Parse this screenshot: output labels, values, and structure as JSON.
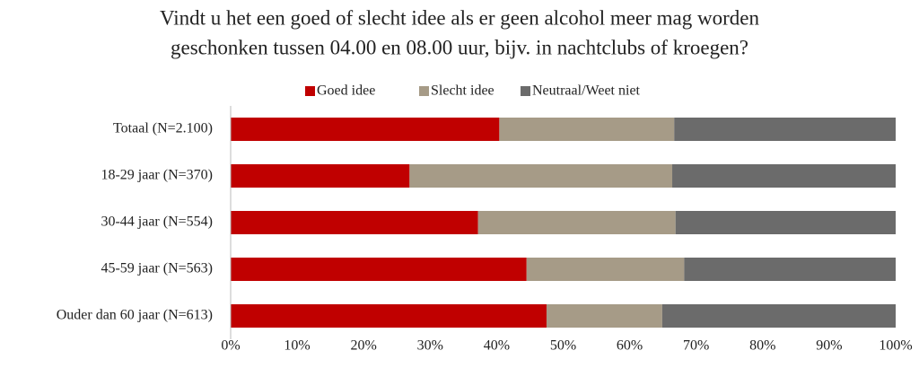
{
  "chart_data": {
    "type": "stacked-barh",
    "title": [
      "Vindt u het een goed of slecht idee als er geen alcohol meer mag worden",
      "geschonken tussen 04.00 en 08.00 uur, bijv. in nachtclubs of kroegen?"
    ],
    "categories": [
      "Totaal (N=2.100)",
      "18-29 jaar (N=370)",
      "30-44 jaar (N=554)",
      "45-59 jaar (N=563)",
      "Ouder dan 60 jaar (N=613)"
    ],
    "series": [
      {
        "name": "Goed idee",
        "color": "#c00000",
        "values": [
          40.4,
          26.9,
          37.2,
          44.5,
          47.5
        ]
      },
      {
        "name": "Slecht idee",
        "color": "#a69b87",
        "values": [
          26.3,
          39.5,
          29.7,
          23.7,
          17.4
        ]
      },
      {
        "name": "Neutraal/Weet niet",
        "color": "#6b6b6b",
        "values": [
          33.3,
          33.6,
          33.1,
          31.8,
          35.1
        ]
      }
    ],
    "xlim": [
      0,
      100
    ],
    "xticks": [
      {
        "value": 0,
        "label": "0%"
      },
      {
        "value": 10,
        "label": "10%"
      },
      {
        "value": 20,
        "label": "20%"
      },
      {
        "value": 30,
        "label": "30%"
      },
      {
        "value": 40,
        "label": "40%"
      },
      {
        "value": 50,
        "label": "50%"
      },
      {
        "value": 60,
        "label": "60%"
      },
      {
        "value": 70,
        "label": "70%"
      },
      {
        "value": 80,
        "label": "80%"
      },
      {
        "value": 90,
        "label": "90%"
      },
      {
        "value": 100,
        "label": "100%"
      }
    ],
    "legend": "top",
    "grid": false
  }
}
